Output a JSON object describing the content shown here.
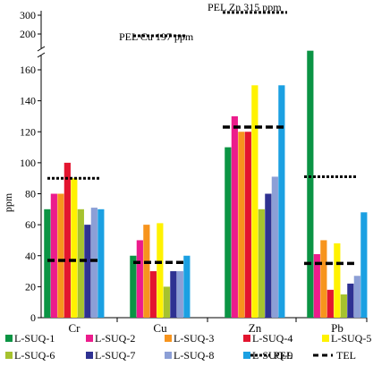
{
  "chart_data": {
    "type": "bar",
    "ylabel": "ppm",
    "categories": [
      "Cr",
      "Cu",
      "Zn",
      "Pb"
    ],
    "y_ticks_lower": [
      0,
      20,
      40,
      60,
      80,
      100,
      120,
      140,
      160
    ],
    "y_ticks_upper": [
      200,
      300
    ],
    "axis_break": [
      170,
      200
    ],
    "series": [
      {
        "name": "L-SUQ-1",
        "color": "#0b9444",
        "values": [
          70,
          40,
          110,
          172
        ]
      },
      {
        "name": "L-SUQ-2",
        "color": "#ec1c8c",
        "values": [
          80,
          50,
          130,
          41
        ]
      },
      {
        "name": "L-SUQ-3",
        "color": "#f7941d",
        "values": [
          80,
          60,
          120,
          50
        ]
      },
      {
        "name": "L-SUQ-4",
        "color": "#e3152f",
        "values": [
          100,
          30,
          120,
          18
        ]
      },
      {
        "name": "L-SUQ-5",
        "color": "#fff200",
        "values": [
          90,
          61,
          150,
          48
        ]
      },
      {
        "name": "L-SUQ-6",
        "color": "#a6c22e",
        "values": [
          70,
          20,
          70,
          15
        ]
      },
      {
        "name": "L-SUQ-7",
        "color": "#2e3192",
        "values": [
          60,
          30,
          80,
          22
        ]
      },
      {
        "name": "L-SUQ-8",
        "color": "#8c9fd6",
        "values": [
          71,
          30,
          91,
          27
        ]
      },
      {
        "name": "L-SUQ-9",
        "color": "#1ba0e2",
        "values": [
          70,
          40,
          150,
          68
        ]
      }
    ],
    "reference_lines": [
      {
        "name": "PEL",
        "style": "dotted",
        "values": [
          90,
          197,
          315,
          91
        ]
      },
      {
        "name": "TEL",
        "style": "dashed",
        "values": [
          37,
          35.7,
          123,
          35
        ]
      }
    ],
    "annotations": [
      "PEL Cu 197 ppm",
      "PEL Zn 315 ppm"
    ],
    "legend_position": "bottom"
  }
}
